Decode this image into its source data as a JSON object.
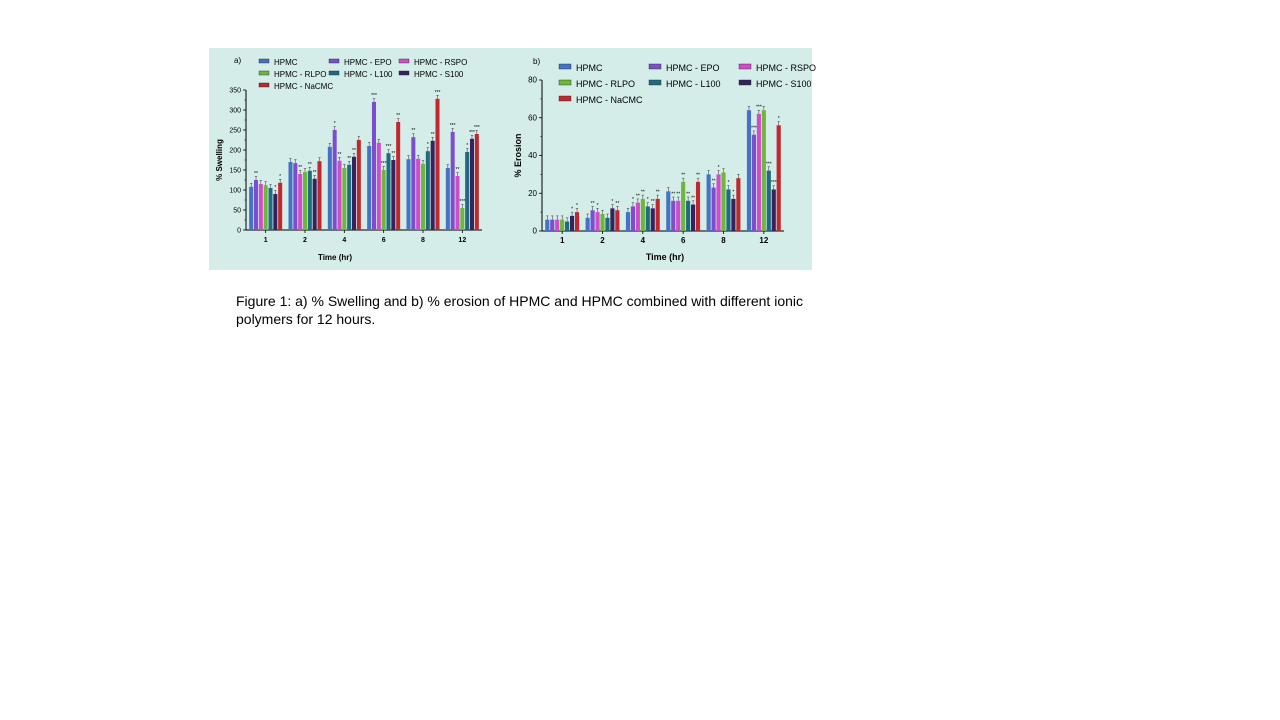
{
  "colors": {
    "panel_background": "#d5ede9",
    "series": [
      "#4472c4",
      "#7b4fcc",
      "#d04cc8",
      "#6fb63c",
      "#1f6b80",
      "#34235e",
      "#c0282d"
    ]
  },
  "caption": "Figure 1: a) % Swelling and b) % erosion of HPMC and HPMC combined with different ionic polymers for 12 hours.",
  "chart_data": [
    {
      "type": "bar",
      "panel_label": "a)",
      "xlabel": "Time (hr)",
      "ylabel": "% Swelling",
      "ylim": [
        0,
        350
      ],
      "yticks": [
        0,
        50,
        100,
        150,
        200,
        250,
        300,
        350
      ],
      "categories": [
        "1",
        "2",
        "4",
        "6",
        "8",
        "12"
      ],
      "legend_position": "top",
      "series": [
        {
          "name": "HPMC",
          "values": [
            108,
            170,
            208,
            210,
            177,
            155
          ],
          "marks": [
            "",
            "",
            "",
            "",
            "",
            ""
          ]
        },
        {
          "name": "HPMC - EPO",
          "values": [
            125,
            167,
            250,
            320,
            232,
            245
          ],
          "marks": [
            "**",
            "",
            "*",
            "***",
            "**",
            "***"
          ]
        },
        {
          "name": "HPMC - RSPO",
          "values": [
            115,
            140,
            173,
            218,
            178,
            135
          ],
          "marks": [
            "",
            "**",
            "**",
            "",
            "",
            "**"
          ]
        },
        {
          "name": "HPMC - RLPO",
          "values": [
            112,
            145,
            155,
            150,
            165,
            55
          ],
          "marks": [
            "",
            "",
            "",
            "***",
            "",
            "***"
          ]
        },
        {
          "name": "HPMC - L100",
          "values": [
            105,
            148,
            163,
            192,
            197,
            195
          ],
          "marks": [
            "",
            "**",
            "**",
            "***",
            "*",
            "*"
          ]
        },
        {
          "name": "HPMC - S100",
          "values": [
            90,
            128,
            183,
            175,
            223,
            228
          ],
          "marks": [
            "*",
            "**",
            "**",
            "**",
            "**",
            "***"
          ]
        },
        {
          "name": "HPMC - NaCMC",
          "values": [
            118,
            172,
            225,
            270,
            328,
            240
          ],
          "marks": [
            "*",
            "",
            "",
            "**",
            "***",
            "***"
          ]
        }
      ]
    },
    {
      "type": "bar",
      "panel_label": "b)",
      "xlabel": "Time (hr)",
      "ylabel": "% Erosion",
      "ylim": [
        0,
        80
      ],
      "yticks": [
        0,
        20,
        40,
        60,
        80
      ],
      "categories": [
        "1",
        "2",
        "4",
        "6",
        "8",
        "12"
      ],
      "legend_position": "top",
      "series": [
        {
          "name": "HPMC",
          "values": [
            6,
            7,
            10,
            21,
            30,
            64
          ],
          "marks": [
            "",
            "",
            "",
            "",
            "",
            ""
          ]
        },
        {
          "name": "HPMC - EPO",
          "values": [
            6,
            11,
            13,
            16,
            23,
            51
          ],
          "marks": [
            "",
            "**",
            "*",
            "**",
            "**",
            "***"
          ]
        },
        {
          "name": "HPMC - RSPO",
          "values": [
            6,
            10,
            15,
            16,
            30,
            62
          ],
          "marks": [
            "",
            "*",
            "**",
            "**",
            "*",
            "***"
          ]
        },
        {
          "name": "HPMC - RLPO",
          "values": [
            6,
            9,
            17,
            26,
            31,
            64
          ],
          "marks": [
            "",
            "",
            "**",
            "**",
            "",
            ""
          ]
        },
        {
          "name": "HPMC - L100",
          "values": [
            5,
            7,
            13,
            16,
            22,
            32
          ],
          "marks": [
            "",
            "",
            "*",
            "**",
            "*",
            "***"
          ]
        },
        {
          "name": "HPMC - S100",
          "values": [
            8,
            12,
            12,
            14,
            17,
            22
          ],
          "marks": [
            "*",
            "*",
            "**",
            "**",
            "*",
            "***"
          ]
        },
        {
          "name": "HPMC - NaCMC",
          "values": [
            10,
            11,
            17,
            26,
            28,
            56
          ],
          "marks": [
            "*",
            "**",
            "**",
            "**",
            "",
            "*"
          ]
        }
      ]
    }
  ]
}
